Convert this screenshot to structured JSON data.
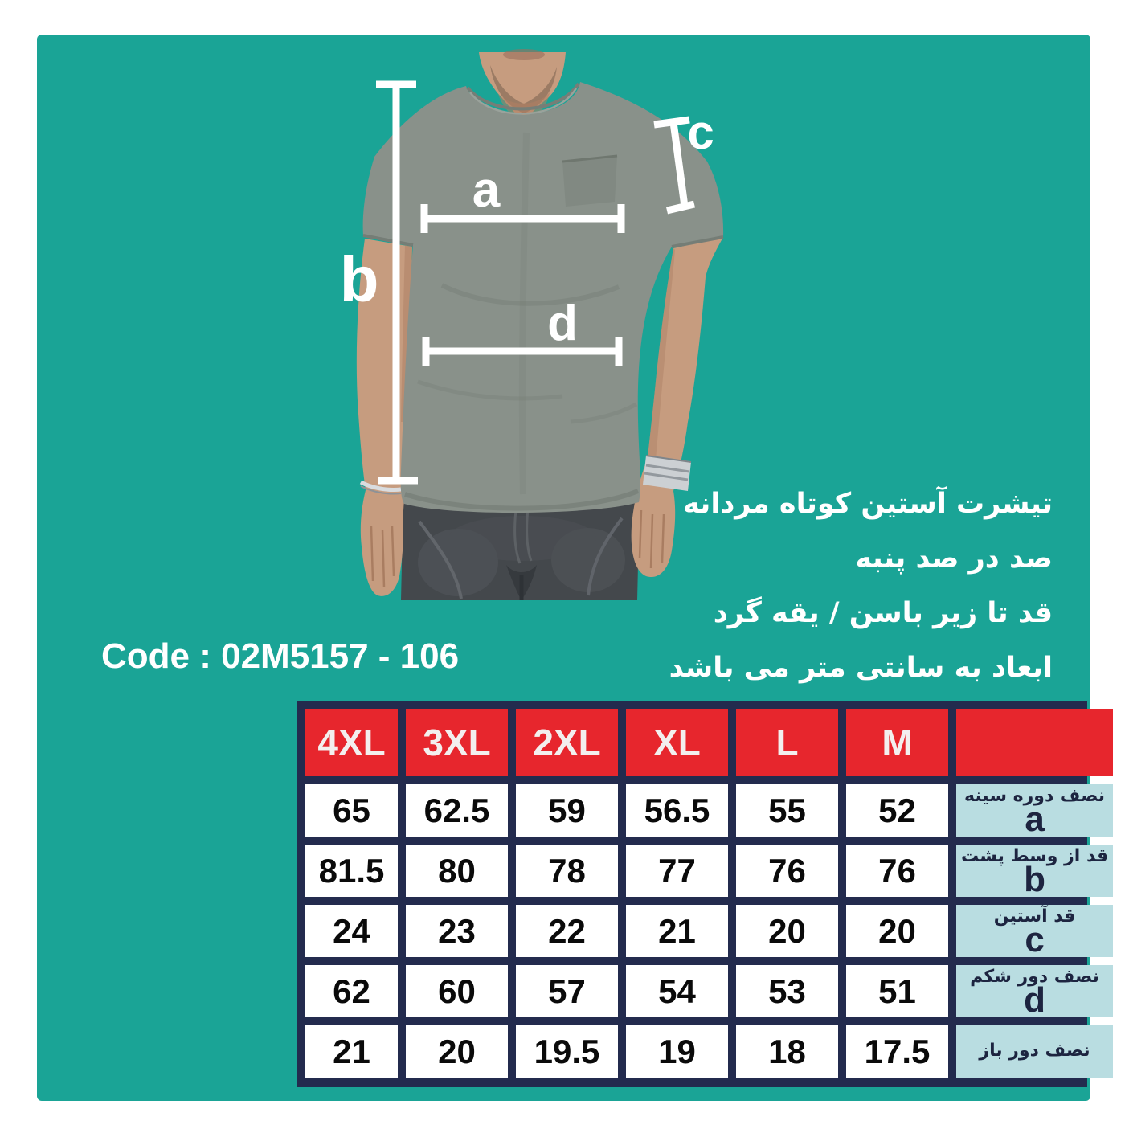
{
  "colors": {
    "teal": "#1aa496",
    "navy": "#232b4e",
    "red": "#e7262d",
    "label_blue": "#b9dde1",
    "label_text": "#1d2440"
  },
  "product": {
    "code": "Code : 02M5157 - 106",
    "description_lines": [
      "تیشرت آستین کوتاه مردانه",
      "صد در صد پنبه",
      "قد تا زیر باسن / یقه گرد",
      "ابعاد به سانتی متر می باشد"
    ]
  },
  "figure": {
    "labels": {
      "a": "a",
      "b": "b",
      "c": "c",
      "d": "d"
    }
  },
  "chart_data": {
    "type": "table",
    "title": "",
    "columns": [
      "4XL",
      "3XL",
      "2XL",
      "XL",
      "L",
      "M"
    ],
    "rows": [
      {
        "measure_fa": "نصف دوره سینه",
        "letter": "a",
        "values": [
          "65",
          "62.5",
          "59",
          "56.5",
          "55",
          "52"
        ]
      },
      {
        "measure_fa": "قد از وسط پشت",
        "letter": "b",
        "values": [
          "81.5",
          "80",
          "78",
          "77",
          "76",
          "76"
        ]
      },
      {
        "measure_fa": "قد آستین",
        "letter": "c",
        "values": [
          "24",
          "23",
          "22",
          "21",
          "20",
          "20"
        ]
      },
      {
        "measure_fa": "نصف دور شکم",
        "letter": "d",
        "values": [
          "62",
          "60",
          "57",
          "54",
          "53",
          "51"
        ]
      },
      {
        "measure_fa": "نصف دور باز",
        "letter": "",
        "values": [
          "21",
          "20",
          "19.5",
          "19",
          "18",
          "17.5"
        ]
      }
    ]
  }
}
